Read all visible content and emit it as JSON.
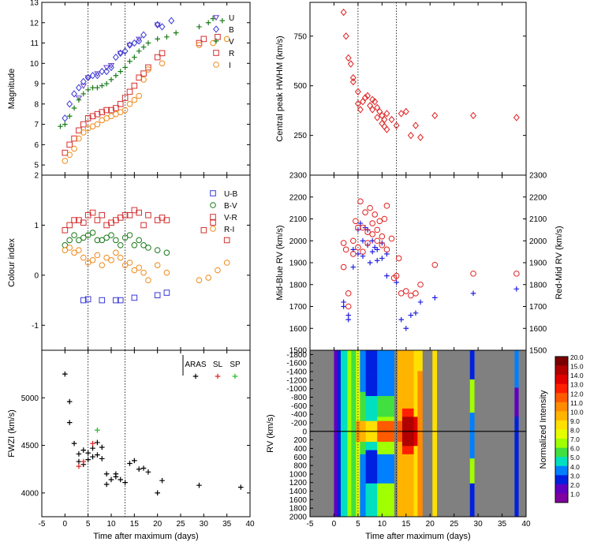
{
  "chart_data": [
    {
      "id": "magnitude",
      "type": "scatter",
      "title": "",
      "xlabel": "",
      "ylabel": "Magnitude",
      "xlim": [
        -5,
        40
      ],
      "ylim": [
        13,
        4.5
      ],
      "yticks": [
        5,
        6,
        7,
        8,
        9,
        10,
        11,
        12,
        13
      ],
      "vlines": [
        5,
        13
      ],
      "series": [
        {
          "name": "U",
          "marker": "triangle-down",
          "color": "#6a3fd0",
          "x": [
            3,
            4,
            5,
            7,
            9,
            10,
            12,
            14,
            16,
            20
          ],
          "y": [
            8.3,
            8.9,
            9.3,
            9.5,
            9.8,
            9.9,
            10.5,
            10.9,
            11.2,
            11.9
          ]
        },
        {
          "name": "B",
          "marker": "diamond",
          "color": "#3a3ad6",
          "x": [
            0,
            1,
            2,
            3,
            4,
            5,
            6,
            7,
            8,
            9,
            10,
            11,
            12,
            13,
            14,
            15,
            16,
            17,
            20,
            21,
            23
          ],
          "y": [
            7.3,
            8.0,
            8.5,
            8.8,
            9.1,
            9.3,
            9.4,
            9.4,
            9.6,
            9.6,
            9.8,
            10.3,
            10.5,
            10.6,
            10.9,
            11.0,
            11.1,
            11.4,
            11.9,
            11.8,
            12.1
          ]
        },
        {
          "name": "V",
          "marker": "plus",
          "color": "#1a7a1a",
          "x": [
            -1,
            0,
            1,
            2,
            3,
            4,
            5,
            6,
            7,
            8,
            9,
            10,
            11,
            12,
            13,
            14,
            15,
            16,
            17,
            18,
            20,
            22,
            24,
            29,
            31,
            32,
            34
          ],
          "y": [
            6.9,
            7.0,
            7.4,
            7.8,
            8.2,
            8.5,
            8.7,
            8.8,
            8.8,
            8.9,
            9.0,
            9.2,
            9.4,
            9.6,
            9.8,
            10.1,
            10.3,
            10.6,
            10.8,
            11.0,
            11.2,
            11.3,
            11.5,
            11.8,
            12.0,
            12.2,
            12.1
          ]
        },
        {
          "name": "R",
          "marker": "square",
          "color": "#d43030",
          "x": [
            0,
            1,
            2,
            3,
            4,
            5,
            6,
            7,
            8,
            9,
            10,
            11,
            12,
            13,
            14,
            15,
            16,
            17,
            18,
            20,
            21,
            29,
            30,
            33
          ],
          "y": [
            5.6,
            6.0,
            6.3,
            6.7,
            7.0,
            7.3,
            7.4,
            7.5,
            7.6,
            7.7,
            7.7,
            7.8,
            8.0,
            8.3,
            8.6,
            8.9,
            9.3,
            9.5,
            9.8,
            10.3,
            10.5,
            11.0,
            11.2,
            11.3
          ]
        },
        {
          "name": "I",
          "marker": "circle",
          "color": "#f08a1a",
          "x": [
            0,
            1,
            2,
            3,
            4,
            5,
            6,
            7,
            8,
            9,
            10,
            11,
            12,
            13,
            14,
            15,
            16,
            17,
            18,
            21,
            29,
            32,
            35
          ],
          "y": [
            5.2,
            5.5,
            5.8,
            6.3,
            6.6,
            6.8,
            6.9,
            7.0,
            7.2,
            7.3,
            7.4,
            7.5,
            7.6,
            7.7,
            8.0,
            8.2,
            8.4,
            9.2,
            9.7,
            10.0,
            10.9,
            11.0,
            11.2
          ]
        }
      ]
    },
    {
      "id": "colour-index",
      "type": "scatter",
      "ylabel": "Colour index",
      "xlim": [
        -5,
        40
      ],
      "ylim": [
        2,
        -1.5
      ],
      "yticks": [
        -1,
        0,
        1,
        2
      ],
      "vlines": [
        5,
        13
      ],
      "series": [
        {
          "name": "U-B",
          "marker": "square",
          "color": "#3a3ad6",
          "x": [
            4,
            5,
            8,
            11,
            12,
            15,
            20,
            22
          ],
          "y": [
            -0.5,
            -0.48,
            -0.5,
            -0.5,
            -0.5,
            -0.45,
            -0.4,
            -0.35
          ]
        },
        {
          "name": "B-V",
          "marker": "circle",
          "color": "#1a7a1a",
          "x": [
            0,
            1,
            2,
            3,
            4,
            5,
            6,
            7,
            8,
            9,
            10,
            11,
            12,
            13,
            14,
            15,
            16,
            17,
            18,
            20,
            22
          ],
          "y": [
            0.6,
            0.7,
            0.8,
            0.7,
            0.75,
            0.8,
            0.85,
            0.7,
            0.7,
            0.75,
            0.8,
            0.7,
            0.6,
            0.75,
            0.8,
            0.6,
            0.7,
            0.6,
            0.55,
            0.5,
            0.45
          ]
        },
        {
          "name": "V-R",
          "marker": "square",
          "color": "#d43030",
          "x": [
            0,
            1,
            2,
            3,
            4,
            5,
            6,
            7,
            8,
            9,
            10,
            11,
            12,
            13,
            14,
            15,
            16,
            17,
            18,
            20,
            21,
            22,
            30,
            32,
            35
          ],
          "y": [
            0.9,
            1.0,
            1.1,
            1.1,
            1.05,
            1.2,
            1.25,
            1.1,
            1.2,
            1.0,
            1.05,
            1.1,
            1.15,
            1.2,
            1.2,
            1.3,
            1.25,
            1.0,
            1.2,
            1.1,
            1.15,
            1.1,
            0.9,
            1.05,
            0.7
          ]
        },
        {
          "name": "R-I",
          "marker": "circle",
          "color": "#f08a1a",
          "x": [
            0,
            1,
            2,
            3,
            4,
            5,
            6,
            7,
            8,
            9,
            10,
            11,
            12,
            13,
            14,
            15,
            16,
            17,
            18,
            20,
            22,
            29,
            31,
            33,
            35
          ],
          "y": [
            0.5,
            0.55,
            0.45,
            0.5,
            0.35,
            0.25,
            0.3,
            0.4,
            0.2,
            0.35,
            0.3,
            0.45,
            0.35,
            0.2,
            0.25,
            0.1,
            0.15,
            0.05,
            -0.1,
            0.2,
            0.05,
            -0.1,
            -0.05,
            0.1,
            0.25
          ]
        }
      ]
    },
    {
      "id": "fwzi",
      "type": "scatter",
      "ylabel": "FWZI (km/s)",
      "xlabel": "Time after maximum (days)",
      "xlim": [
        -5,
        40
      ],
      "ylim": [
        3750,
        5500
      ],
      "yticks": [
        4000,
        4500,
        5000
      ],
      "xticks": [
        -5,
        0,
        5,
        10,
        15,
        20,
        25,
        30,
        35,
        40
      ],
      "vlines": [
        5,
        13
      ],
      "series": [
        {
          "name": "ARAS",
          "marker": "plus",
          "color": "#000000",
          "x": [
            0,
            1,
            1,
            2,
            3,
            3,
            4,
            4,
            5,
            5,
            6,
            6,
            7,
            7,
            8,
            8,
            9,
            9,
            10,
            11,
            11,
            12,
            13,
            14,
            15,
            16,
            17,
            18,
            20,
            21,
            29,
            38
          ],
          "y": [
            5250,
            4960,
            4740,
            4520,
            4330,
            4410,
            4300,
            4450,
            4350,
            4420,
            4380,
            4470,
            4400,
            4530,
            4360,
            4480,
            4200,
            4090,
            4140,
            4200,
            4170,
            4140,
            4110,
            4310,
            4340,
            4250,
            4260,
            4220,
            4000,
            4130,
            4080,
            4060
          ]
        },
        {
          "name": "SL",
          "marker": "plus",
          "color": "#e02020",
          "x": [
            3,
            4,
            6
          ],
          "y": [
            4280,
            4330,
            4520
          ]
        },
        {
          "name": "SP",
          "marker": "plus",
          "color": "#20c020",
          "x": [
            7
          ],
          "y": [
            4660
          ]
        }
      ]
    },
    {
      "id": "hwhm",
      "type": "scatter",
      "ylabel": "Central peak HWHM (km/s)",
      "xlim": [
        -5,
        40
      ],
      "ylim": [
        50,
        920
      ],
      "yticks": [
        250,
        500,
        750
      ],
      "vlines": [
        5,
        13
      ],
      "series": [
        {
          "name": "HWHM",
          "marker": "diamond",
          "color": "#e02020",
          "x": [
            2,
            2.5,
            3,
            3.5,
            4,
            4,
            5,
            5,
            5.5,
            6,
            6.5,
            7,
            7.5,
            8,
            8,
            8.5,
            9,
            9,
            9.5,
            10,
            10,
            10.5,
            10.5,
            11,
            11,
            12,
            13,
            14,
            15,
            16,
            17,
            18,
            21,
            29,
            38
          ],
          "y": [
            870,
            750,
            640,
            610,
            540,
            520,
            470,
            410,
            380,
            420,
            440,
            450,
            400,
            430,
            380,
            420,
            390,
            340,
            370,
            350,
            310,
            330,
            295,
            360,
            280,
            330,
            300,
            360,
            370,
            250,
            300,
            240,
            350,
            350,
            340
          ]
        }
      ]
    },
    {
      "id": "rv",
      "type": "scatter",
      "ylabel_left": "Mid-Blue RV (km/s)",
      "ylabel_right": "Red-Mid RV (km/s)",
      "xlim": [
        -5,
        40
      ],
      "ylim": [
        1500,
        2300
      ],
      "yticks": [
        1500,
        1600,
        1700,
        1800,
        1900,
        2000,
        2100,
        2200,
        2300
      ],
      "vlines": [
        5,
        13
      ],
      "series": [
        {
          "name": "Mid-Blue",
          "marker": "plus",
          "color": "#2020e0",
          "x": [
            2,
            2,
            3,
            3,
            4,
            4,
            5,
            5,
            5.5,
            6,
            6,
            6.5,
            7,
            7,
            7.5,
            8,
            8,
            8.5,
            9,
            9,
            10,
            10,
            11,
            11,
            13,
            14,
            15,
            16,
            17,
            18,
            21,
            29,
            38
          ],
          "y": [
            1700,
            1720,
            1640,
            1660,
            1960,
            1880,
            2050,
            1940,
            2080,
            2000,
            1930,
            2060,
            2050,
            1980,
            1900,
            1950,
            2000,
            1970,
            1910,
            1960,
            1990,
            1920,
            1840,
            1940,
            1810,
            1640,
            1600,
            1660,
            1670,
            1720,
            1740,
            1760,
            1780
          ]
        },
        {
          "name": "Red-Mid",
          "marker": "circle",
          "color": "#e02020",
          "x": [
            2,
            2,
            2.5,
            3,
            3,
            4,
            4,
            4.5,
            5,
            5,
            5.5,
            6,
            6,
            6.5,
            7,
            7,
            7.5,
            8,
            8,
            8.5,
            9,
            9,
            9.5,
            10,
            10,
            10.5,
            11,
            11,
            12,
            12.5,
            13,
            13.5,
            14,
            15,
            16,
            17,
            18,
            21,
            29,
            38
          ],
          "y": [
            1990,
            1880,
            1960,
            1700,
            1760,
            2000,
            1940,
            2090,
            2060,
            1970,
            2180,
            2060,
            1950,
            2130,
            2040,
            1990,
            2150,
            2080,
            2030,
            2120,
            2050,
            2000,
            2090,
            1980,
            2020,
            2100,
            2160,
            1960,
            2010,
            1830,
            1840,
            1920,
            1760,
            1770,
            1750,
            1760,
            1800,
            1890,
            1850,
            1850
          ]
        }
      ]
    },
    {
      "id": "dynamic-spectrum",
      "type": "heatmap",
      "xlabel": "Time after maximum (days)",
      "ylabel": "RV (km/s)",
      "xlim": [
        -5,
        40
      ],
      "ylim": [
        -1900,
        2000
      ],
      "yticks": [
        -1800,
        -1600,
        -1400,
        -1200,
        -1000,
        -800,
        -600,
        -400,
        -200,
        0,
        200,
        400,
        600,
        800,
        1000,
        1200,
        1400,
        1600,
        1800,
        2000
      ],
      "ytick_labels": [
        "-1800",
        "-1600",
        "-1400",
        "-1200",
        "-1000",
        "-800",
        "-600",
        "-400",
        "-200",
        "0",
        "200",
        "400",
        "600",
        "800",
        "1000",
        "1200",
        "1400",
        "1600",
        "1800",
        "2000"
      ],
      "xticks": [
        -5,
        0,
        5,
        10,
        15,
        20,
        25,
        30,
        35,
        40
      ],
      "hline": 0,
      "vlines": [
        5,
        13
      ],
      "colorbar_label": "Normalized Intensity",
      "colorbar_ticks": [
        "20.0",
        "15.0",
        "14.0",
        "13.0",
        "12.0",
        "11.0",
        "10.0",
        "9.0",
        "8.0",
        "7.0",
        "6.0",
        "5.0",
        "4.0",
        "3.0",
        "2.0",
        "1.0"
      ],
      "colorbar_colors": [
        "#7a0000",
        "#b00000",
        "#e00000",
        "#ff2000",
        "#ff5a00",
        "#ff8c00",
        "#ffb400",
        "#ffe000",
        "#e6ff00",
        "#a0ff00",
        "#40e040",
        "#00e0c0",
        "#0080ff",
        "#0020e0",
        "#6000c0",
        "#8000a0"
      ]
    }
  ],
  "legends": {
    "magnitude": [
      "U",
      "B",
      "V",
      "R",
      "I"
    ],
    "colour": [
      "U-B",
      "B-V",
      "V-R",
      "R-I"
    ],
    "fwzi": [
      "ARAS",
      "SL",
      "SP"
    ]
  }
}
